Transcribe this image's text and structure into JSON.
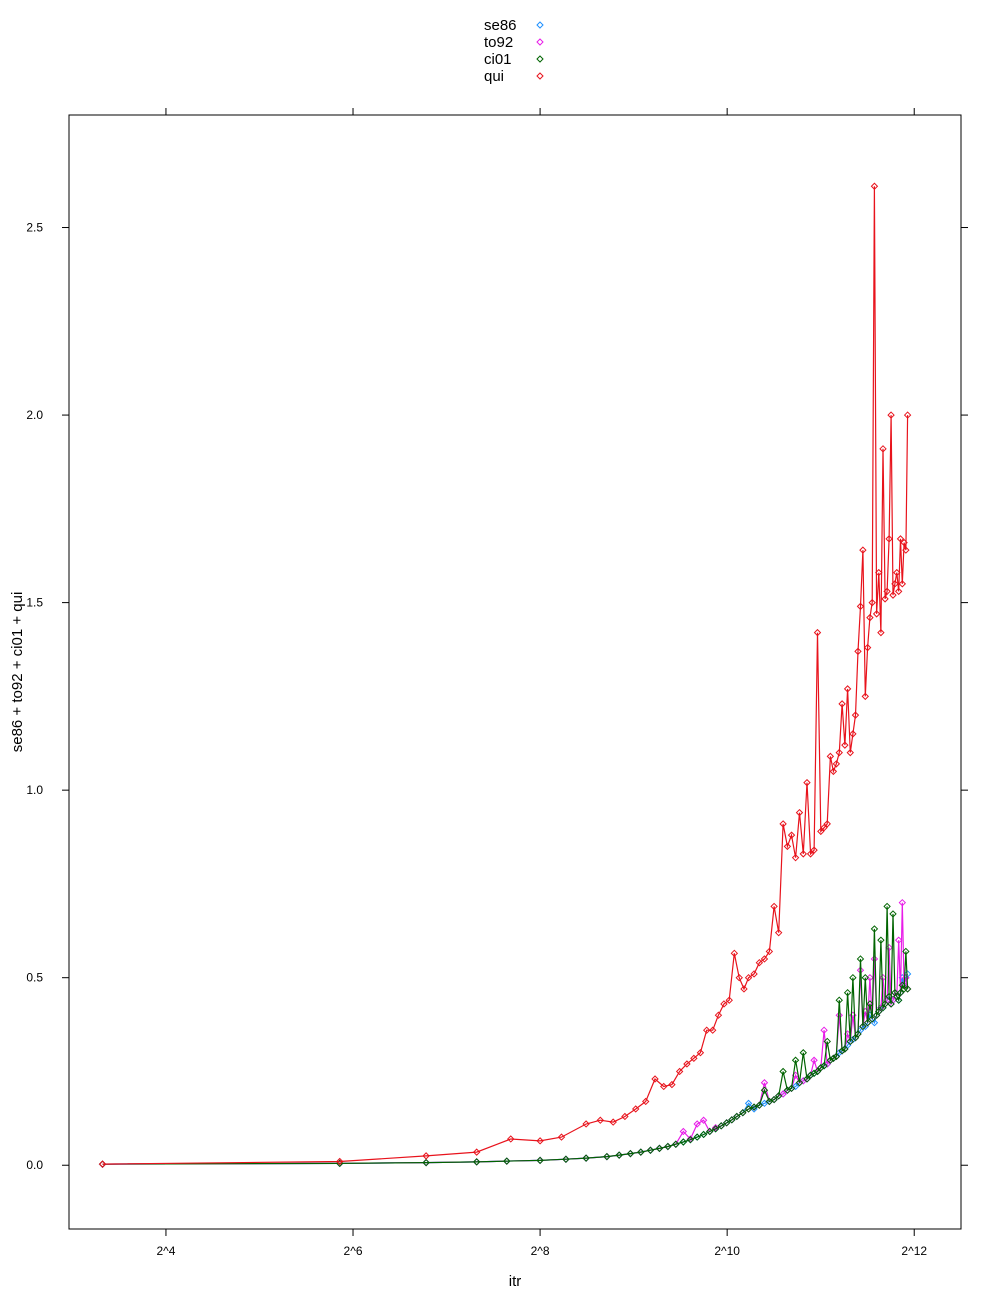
{
  "chart_data": {
    "type": "line",
    "xlabel": "itr",
    "ylabel": "se86 + to92 + ci01 + qui",
    "x_scale": "log2",
    "xlim": [
      7.8,
      5793
    ],
    "ylim": [
      -0.17,
      2.8
    ],
    "x_ticks": [
      {
        "value": 16,
        "label": "2^4"
      },
      {
        "value": 64,
        "label": "2^6"
      },
      {
        "value": 256,
        "label": "2^8"
      },
      {
        "value": 1024,
        "label": "2^10"
      },
      {
        "value": 4096,
        "label": "2^12"
      }
    ],
    "y_ticks": [
      {
        "value": 0.0,
        "label": "0.0"
      },
      {
        "value": 0.5,
        "label": "0.5"
      },
      {
        "value": 1.0,
        "label": "1.0"
      },
      {
        "value": 1.5,
        "label": "1.5"
      },
      {
        "value": 2.0,
        "label": "2.0"
      },
      {
        "value": 2.5,
        "label": "2.5"
      }
    ],
    "grid": false,
    "legend_position": "top-center",
    "series": [
      {
        "name": "se86",
        "color": "#1e90ff",
        "x": [
          10,
          58,
          110,
          160,
          200,
          256,
          310,
          360,
          420,
          460,
          500,
          540,
          580,
          620,
          660,
          700,
          740,
          780,
          820,
          860,
          900,
          940,
          980,
          1020,
          1060,
          1100,
          1150,
          1200,
          1250,
          1300,
          1350,
          1400,
          1450,
          1500,
          1550,
          1600,
          1650,
          1700,
          1750,
          1800,
          1850,
          1900,
          1950,
          2000,
          2050,
          2100,
          2150,
          2200,
          2250,
          2300,
          2350,
          2400,
          2450,
          2500,
          2550,
          2600,
          2650,
          2700,
          2750,
          2800,
          2850,
          2900,
          2950,
          3000,
          3050,
          3100,
          3150,
          3200,
          3250,
          3300,
          3350,
          3400,
          3450,
          3500,
          3550,
          3600,
          3650,
          3700,
          3750,
          3800,
          3850,
          3900
        ],
        "y": [
          0.003,
          0.005,
          0.007,
          0.009,
          0.011,
          0.013,
          0.016,
          0.019,
          0.023,
          0.027,
          0.031,
          0.035,
          0.04,
          0.045,
          0.05,
          0.056,
          0.062,
          0.068,
          0.075,
          0.082,
          0.09,
          0.097,
          0.105,
          0.113,
          0.121,
          0.13,
          0.14,
          0.165,
          0.15,
          0.16,
          0.165,
          0.17,
          0.175,
          0.185,
          0.19,
          0.2,
          0.205,
          0.21,
          0.22,
          0.225,
          0.23,
          0.24,
          0.245,
          0.25,
          0.26,
          0.265,
          0.27,
          0.28,
          0.285,
          0.29,
          0.3,
          0.305,
          0.31,
          0.32,
          0.33,
          0.335,
          0.34,
          0.35,
          0.36,
          0.37,
          0.37,
          0.38,
          0.4,
          0.39,
          0.38,
          0.4,
          0.41,
          0.42,
          0.42,
          0.43,
          0.44,
          0.45,
          0.43,
          0.44,
          0.46,
          0.45,
          0.44,
          0.46,
          0.5,
          0.48,
          0.5,
          0.51
        ]
      },
      {
        "name": "to92",
        "color": "#e81ce8",
        "x": [
          10,
          58,
          110,
          160,
          200,
          256,
          310,
          360,
          420,
          460,
          500,
          540,
          580,
          620,
          660,
          700,
          740,
          780,
          820,
          860,
          900,
          940,
          980,
          1020,
          1060,
          1100,
          1150,
          1200,
          1250,
          1300,
          1350,
          1400,
          1450,
          1500,
          1550,
          1600,
          1650,
          1700,
          1750,
          1800,
          1850,
          1900,
          1950,
          2000,
          2050,
          2100,
          2150,
          2200,
          2250,
          2300,
          2350,
          2400,
          2450,
          2500,
          2550,
          2600,
          2650,
          2700,
          2750,
          2800,
          2850,
          2900,
          2950,
          3000,
          3050,
          3100,
          3150,
          3200,
          3250,
          3300,
          3350,
          3400,
          3450,
          3500,
          3550,
          3600,
          3650,
          3700,
          3750,
          3800,
          3850,
          3900
        ],
        "y": [
          0.003,
          0.005,
          0.007,
          0.009,
          0.011,
          0.013,
          0.016,
          0.019,
          0.023,
          0.027,
          0.031,
          0.035,
          0.04,
          0.045,
          0.05,
          0.056,
          0.09,
          0.07,
          0.11,
          0.12,
          0.09,
          0.1,
          0.105,
          0.113,
          0.121,
          0.13,
          0.14,
          0.15,
          0.155,
          0.16,
          0.22,
          0.17,
          0.175,
          0.185,
          0.19,
          0.2,
          0.205,
          0.24,
          0.22,
          0.225,
          0.23,
          0.24,
          0.28,
          0.25,
          0.26,
          0.36,
          0.27,
          0.28,
          0.285,
          0.29,
          0.4,
          0.305,
          0.31,
          0.35,
          0.33,
          0.4,
          0.34,
          0.35,
          0.52,
          0.37,
          0.41,
          0.38,
          0.5,
          0.39,
          0.55,
          0.4,
          0.41,
          0.42,
          0.5,
          0.43,
          0.44,
          0.58,
          0.43,
          0.44,
          0.46,
          0.45,
          0.6,
          0.46,
          0.7,
          0.48,
          0.5,
          0.47
        ]
      },
      {
        "name": "ci01",
        "color": "#006400",
        "x": [
          10,
          58,
          110,
          160,
          200,
          256,
          310,
          360,
          420,
          460,
          500,
          540,
          580,
          620,
          660,
          700,
          740,
          780,
          820,
          860,
          900,
          940,
          980,
          1020,
          1060,
          1100,
          1150,
          1200,
          1250,
          1300,
          1350,
          1400,
          1450,
          1500,
          1550,
          1600,
          1650,
          1700,
          1750,
          1800,
          1850,
          1900,
          1950,
          2000,
          2050,
          2100,
          2150,
          2200,
          2250,
          2300,
          2350,
          2400,
          2450,
          2500,
          2550,
          2600,
          2650,
          2700,
          2750,
          2800,
          2850,
          2900,
          2950,
          3000,
          3050,
          3100,
          3150,
          3200,
          3250,
          3300,
          3350,
          3400,
          3450,
          3500,
          3550,
          3600,
          3650,
          3700,
          3750,
          3800,
          3850,
          3900
        ],
        "y": [
          0.003,
          0.005,
          0.007,
          0.009,
          0.011,
          0.013,
          0.016,
          0.019,
          0.023,
          0.027,
          0.031,
          0.035,
          0.04,
          0.045,
          0.05,
          0.056,
          0.062,
          0.068,
          0.075,
          0.082,
          0.09,
          0.097,
          0.105,
          0.113,
          0.121,
          0.13,
          0.14,
          0.15,
          0.155,
          0.16,
          0.2,
          0.17,
          0.175,
          0.185,
          0.25,
          0.2,
          0.205,
          0.28,
          0.22,
          0.3,
          0.23,
          0.24,
          0.245,
          0.25,
          0.26,
          0.265,
          0.33,
          0.28,
          0.285,
          0.29,
          0.44,
          0.305,
          0.31,
          0.46,
          0.33,
          0.5,
          0.34,
          0.35,
          0.55,
          0.37,
          0.5,
          0.38,
          0.43,
          0.39,
          0.63,
          0.4,
          0.41,
          0.6,
          0.42,
          0.43,
          0.69,
          0.45,
          0.43,
          0.67,
          0.46,
          0.45,
          0.44,
          0.46,
          0.48,
          0.47,
          0.57,
          0.47
        ]
      },
      {
        "name": "qui",
        "color": "#e8131c",
        "x": [
          10,
          58,
          110,
          160,
          206,
          256,
          300,
          360,
          400,
          440,
          480,
          520,
          560,
          600,
          640,
          680,
          720,
          760,
          800,
          840,
          880,
          920,
          960,
          1000,
          1040,
          1080,
          1120,
          1160,
          1200,
          1250,
          1300,
          1350,
          1400,
          1450,
          1500,
          1550,
          1600,
          1650,
          1700,
          1750,
          1800,
          1850,
          1900,
          1950,
          2000,
          2050,
          2100,
          2150,
          2200,
          2250,
          2300,
          2350,
          2400,
          2450,
          2500,
          2550,
          2600,
          2650,
          2700,
          2750,
          2800,
          2850,
          2900,
          2950,
          3000,
          3050,
          3100,
          3150,
          3200,
          3250,
          3300,
          3350,
          3400,
          3450,
          3500,
          3550,
          3600,
          3650,
          3700,
          3750,
          3800,
          3850,
          3900
        ],
        "y": [
          0.003,
          0.01,
          0.025,
          0.035,
          0.07,
          0.065,
          0.075,
          0.11,
          0.12,
          0.115,
          0.13,
          0.15,
          0.17,
          0.23,
          0.21,
          0.215,
          0.25,
          0.27,
          0.285,
          0.3,
          0.36,
          0.36,
          0.4,
          0.43,
          0.44,
          0.565,
          0.5,
          0.47,
          0.5,
          0.51,
          0.54,
          0.55,
          0.57,
          0.69,
          0.62,
          0.91,
          0.85,
          0.88,
          0.82,
          0.94,
          0.83,
          1.02,
          0.83,
          0.84,
          1.42,
          0.89,
          0.9,
          0.91,
          1.09,
          1.05,
          1.07,
          1.1,
          1.23,
          1.12,
          1.27,
          1.1,
          1.15,
          1.2,
          1.37,
          1.49,
          1.64,
          1.25,
          1.38,
          1.46,
          1.5,
          2.61,
          1.47,
          1.58,
          1.42,
          1.91,
          1.51,
          1.53,
          1.67,
          2.0,
          1.52,
          1.55,
          1.58,
          1.53,
          1.67,
          1.55,
          1.66,
          1.64,
          2.0
        ]
      }
    ]
  }
}
